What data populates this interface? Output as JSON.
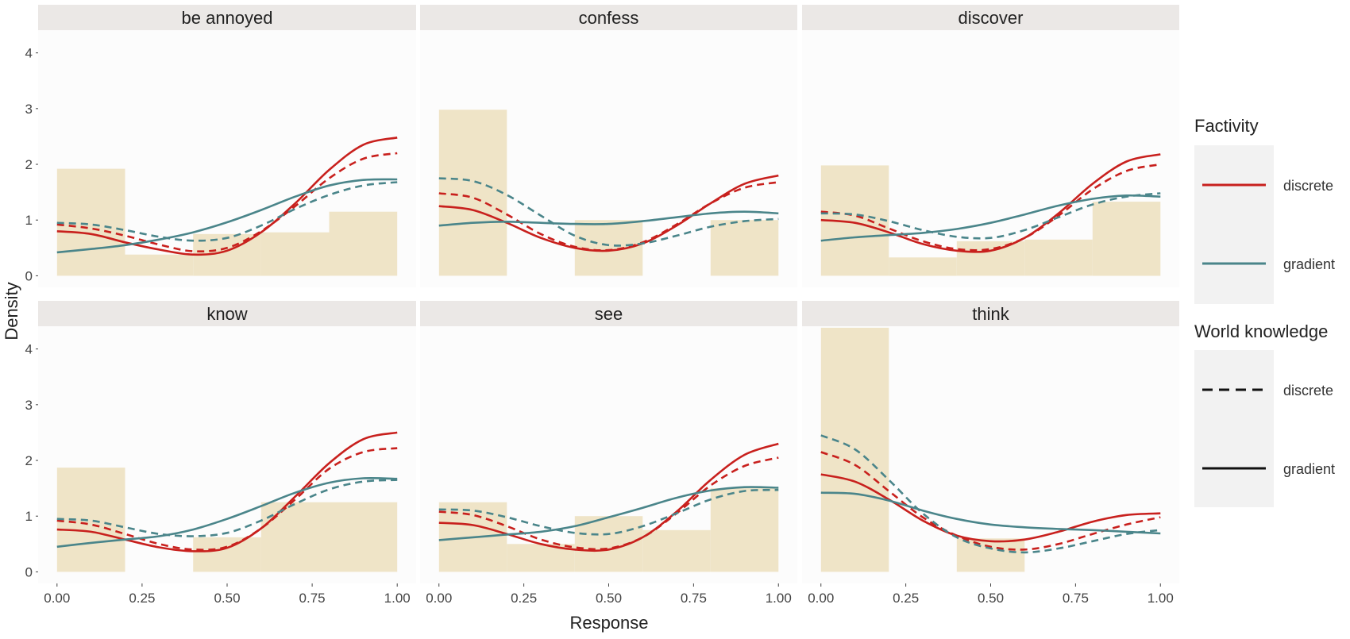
{
  "chart_data": {
    "type": "facet-density",
    "xlabel": "Response",
    "ylabel": "Density",
    "xlim": [
      0,
      1
    ],
    "ylim": [
      0,
      4.2
    ],
    "x_ticks": [
      "0.00",
      "0.25",
      "0.50",
      "0.75",
      "1.00"
    ],
    "y_ticks": [
      "0",
      "1",
      "2",
      "3",
      "4"
    ],
    "colors": {
      "discrete": "#c8201d",
      "gradient": "#4a858a",
      "histogram": "#efe4c7",
      "panel_bg": "#fcfcfc",
      "strip_bg": "#ebe8e6",
      "legend_key_bg": "#f2f2f2"
    },
    "legend": {
      "factivity_title": "Factivity",
      "factivity_items": [
        "discrete",
        "gradient"
      ],
      "world_title": "World knowledge",
      "world_items": [
        "discrete",
        "gradient"
      ]
    },
    "series_key": [
      {
        "name": "Factivity discrete / World knowledge discrete",
        "color": "discrete",
        "dash": true
      },
      {
        "name": "Factivity discrete / World knowledge gradient",
        "color": "discrete",
        "dash": false
      },
      {
        "name": "Factivity gradient / World knowledge discrete",
        "color": "gradient",
        "dash": true
      },
      {
        "name": "Factivity gradient / World knowledge gradient",
        "color": "gradient",
        "dash": false
      }
    ],
    "curve_x": [
      0,
      0.1,
      0.2,
      0.3,
      0.4,
      0.5,
      0.6,
      0.7,
      0.8,
      0.9,
      1.0
    ],
    "bin_edges": [
      0,
      0.2,
      0.4,
      0.6,
      0.8,
      1.0
    ],
    "panels": [
      {
        "title": "be annoyed",
        "hist": [
          1.92,
          0.38,
          0.75,
          0.78,
          1.15
        ],
        "curves": [
          [
            0.92,
            0.85,
            0.72,
            0.56,
            0.44,
            0.5,
            0.8,
            1.25,
            1.75,
            2.1,
            2.2
          ],
          [
            0.8,
            0.75,
            0.6,
            0.47,
            0.38,
            0.45,
            0.78,
            1.3,
            1.9,
            2.35,
            2.48
          ],
          [
            0.95,
            0.92,
            0.82,
            0.7,
            0.63,
            0.68,
            0.9,
            1.2,
            1.45,
            1.62,
            1.68
          ],
          [
            0.42,
            0.48,
            0.55,
            0.65,
            0.78,
            0.96,
            1.18,
            1.42,
            1.62,
            1.72,
            1.73
          ]
        ]
      },
      {
        "title": "confess",
        "hist": [
          2.98,
          0.0,
          1.0,
          0.0,
          1.0
        ],
        "curves": [
          [
            1.48,
            1.4,
            1.1,
            0.75,
            0.52,
            0.46,
            0.6,
            0.92,
            1.3,
            1.58,
            1.68
          ],
          [
            1.25,
            1.18,
            0.95,
            0.68,
            0.5,
            0.45,
            0.58,
            0.9,
            1.3,
            1.65,
            1.8
          ],
          [
            1.75,
            1.7,
            1.45,
            1.08,
            0.72,
            0.55,
            0.58,
            0.72,
            0.88,
            0.98,
            1.02
          ],
          [
            0.9,
            0.95,
            0.97,
            0.95,
            0.93,
            0.93,
            0.98,
            1.05,
            1.12,
            1.15,
            1.12
          ]
        ]
      },
      {
        "title": "discover",
        "hist": [
          1.98,
          0.33,
          0.62,
          0.65,
          1.33
        ],
        "curves": [
          [
            1.15,
            1.08,
            0.85,
            0.62,
            0.48,
            0.48,
            0.68,
            1.08,
            1.55,
            1.88,
            2.0
          ],
          [
            1.0,
            0.95,
            0.78,
            0.57,
            0.45,
            0.45,
            0.68,
            1.12,
            1.65,
            2.05,
            2.18
          ],
          [
            1.12,
            1.1,
            0.98,
            0.82,
            0.7,
            0.68,
            0.82,
            1.05,
            1.28,
            1.42,
            1.48
          ],
          [
            0.63,
            0.69,
            0.73,
            0.77,
            0.84,
            0.95,
            1.1,
            1.26,
            1.38,
            1.44,
            1.42
          ]
        ]
      },
      {
        "title": "know",
        "hist": [
          1.87,
          0.0,
          0.62,
          1.25,
          1.25
        ],
        "curves": [
          [
            0.92,
            0.85,
            0.68,
            0.5,
            0.4,
            0.45,
            0.78,
            1.3,
            1.85,
            2.15,
            2.22
          ],
          [
            0.76,
            0.72,
            0.58,
            0.44,
            0.37,
            0.43,
            0.78,
            1.35,
            1.95,
            2.38,
            2.5
          ],
          [
            0.95,
            0.92,
            0.8,
            0.68,
            0.64,
            0.7,
            0.92,
            1.22,
            1.48,
            1.62,
            1.65
          ],
          [
            0.45,
            0.52,
            0.58,
            0.64,
            0.76,
            0.95,
            1.18,
            1.42,
            1.6,
            1.68,
            1.67
          ]
        ]
      },
      {
        "title": "see",
        "hist": [
          1.25,
          0.5,
          1.0,
          0.75,
          1.5
        ],
        "curves": [
          [
            1.08,
            1.02,
            0.82,
            0.58,
            0.44,
            0.42,
            0.62,
            1.05,
            1.55,
            1.9,
            2.05
          ],
          [
            0.88,
            0.84,
            0.68,
            0.5,
            0.4,
            0.4,
            0.62,
            1.08,
            1.65,
            2.1,
            2.3
          ],
          [
            1.12,
            1.1,
            0.98,
            0.82,
            0.7,
            0.68,
            0.82,
            1.05,
            1.3,
            1.45,
            1.47
          ],
          [
            0.57,
            0.62,
            0.67,
            0.72,
            0.82,
            0.98,
            1.15,
            1.33,
            1.46,
            1.52,
            1.51
          ]
        ]
      },
      {
        "title": "think",
        "hist": [
          4.38,
          0.0,
          0.6,
          0.0,
          0.0
        ],
        "curves": [
          [
            2.15,
            1.92,
            1.45,
            0.98,
            0.65,
            0.45,
            0.4,
            0.5,
            0.68,
            0.85,
            0.98
          ],
          [
            1.75,
            1.62,
            1.3,
            0.92,
            0.65,
            0.55,
            0.58,
            0.72,
            0.9,
            1.02,
            1.05
          ],
          [
            2.45,
            2.2,
            1.65,
            1.05,
            0.62,
            0.42,
            0.35,
            0.42,
            0.55,
            0.68,
            0.75
          ],
          [
            1.42,
            1.4,
            1.28,
            1.1,
            0.95,
            0.85,
            0.8,
            0.77,
            0.75,
            0.72,
            0.69
          ]
        ]
      }
    ]
  }
}
